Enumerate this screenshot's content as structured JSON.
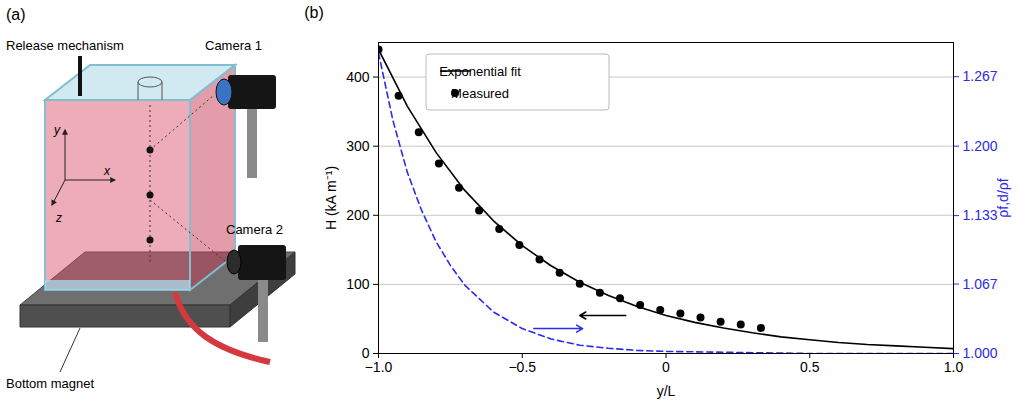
{
  "diagram": {
    "panel_label": "(a)",
    "release": "Release mechanism",
    "camera1": "Camera 1",
    "camera2": "Camera 2",
    "magnet": "Bottom magnet",
    "axis_x": "x",
    "axis_y": "y",
    "axis_z": "z"
  },
  "chart_data": {
    "type": "line",
    "panel_label": "(b)",
    "xlabel": "y/L",
    "ylabel": "H (kA m⁻¹)",
    "y2label": "ρf,d/ρf",
    "xlim": [
      -1,
      1
    ],
    "xticks": [
      {
        "value": -1,
        "label": "−1.0"
      },
      {
        "value": -0.5,
        "label": "−0.5"
      },
      0,
      {
        "value": 0.5,
        "label": "0.5"
      },
      {
        "value": 1,
        "label": "1.0"
      }
    ],
    "ylim": [
      0,
      450
    ],
    "yticks": [
      0,
      100,
      200,
      300,
      400
    ],
    "y2lim": [
      1,
      1.3
    ],
    "y2ticks": [
      {
        "value": 1,
        "label": "1.000"
      },
      1.067,
      1.133,
      {
        "value": 1.2,
        "label": "1.200"
      },
      1.267
    ],
    "grid": true,
    "legend": "upper left",
    "series": [
      {
        "name": "Exponential fit",
        "type": "line",
        "line_style": "solid",
        "color": "#000000",
        "x": [
          -1,
          -0.9,
          -0.8,
          -0.7,
          -0.6,
          -0.5,
          -0.4,
          -0.3,
          -0.2,
          -0.1,
          0,
          0.1,
          0.2,
          0.3,
          0.4,
          0.5,
          0.6,
          0.7,
          0.8,
          0.9,
          1
        ],
        "values": [
          440,
          358,
          291,
          236,
          192,
          156,
          127,
          103,
          84,
          68,
          55,
          45,
          37,
          30,
          24,
          20,
          16,
          13,
          11,
          9,
          7
        ]
      },
      {
        "name": "Measured",
        "type": "scatter",
        "marker": "circle",
        "color": "#000000",
        "x": [
          -1,
          -0.93,
          -0.86,
          -0.79,
          -0.72,
          -0.65,
          -0.58,
          -0.51,
          -0.44,
          -0.37,
          -0.3,
          -0.23,
          -0.16,
          -0.09,
          -0.02,
          0.05,
          0.12,
          0.19,
          0.26,
          0.33
        ],
        "values": [
          440,
          373,
          320,
          275,
          240,
          207,
          180,
          157,
          136,
          117,
          101,
          88,
          80,
          70,
          63,
          58,
          52,
          46,
          42,
          37
        ]
      },
      {
        "type": "line",
        "line_style": "dashed",
        "color": "#2b2bea",
        "axis": "y2",
        "x": [
          -1,
          -0.95,
          -0.9,
          -0.85,
          -0.8,
          -0.75,
          -0.7,
          -0.6,
          -0.5,
          -0.4,
          -0.3,
          -0.2,
          -0.1,
          0,
          0.25,
          0.5,
          0.75,
          1
        ],
        "values": [
          1.29,
          1.225,
          1.175,
          1.138,
          1.108,
          1.085,
          1.066,
          1.04,
          1.024,
          1.014,
          1.008,
          1.005,
          1.003,
          1.002,
          1.001,
          1,
          1,
          1
        ]
      }
    ]
  }
}
